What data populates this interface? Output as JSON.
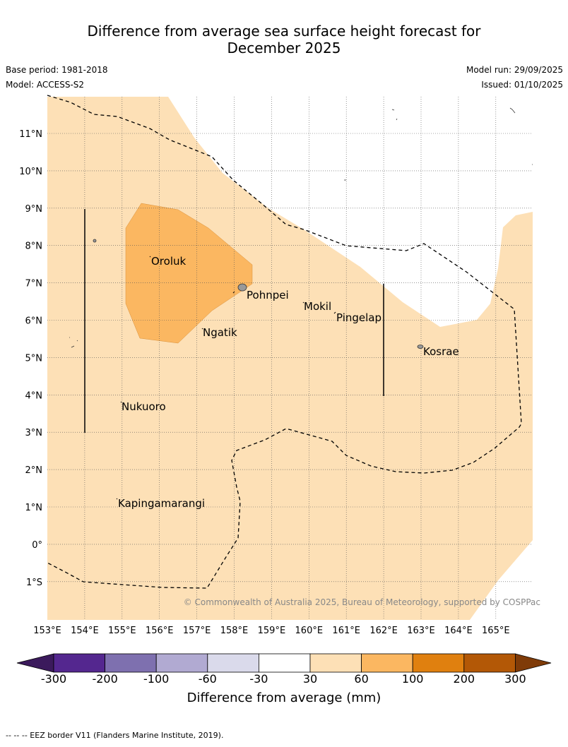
{
  "title_line1": "Difference from average sea surface height forecast for",
  "title_line2": "December 2025",
  "meta": {
    "base_period": "Base period: 1981-2018",
    "model": "Model: ACCESS-S2",
    "model_run": "Model run: 29/09/2025",
    "issued": "Issued: 01/10/2025"
  },
  "lon_labels": [
    "153°E",
    "154°E",
    "155°E",
    "156°E",
    "157°E",
    "158°E",
    "159°E",
    "160°E",
    "161°E",
    "162°E",
    "163°E",
    "164°E",
    "165°E"
  ],
  "lat_labels": [
    "11°N",
    "10°N",
    "9°N",
    "8°N",
    "7°N",
    "6°N",
    "5°N",
    "4°N",
    "3°N",
    "2°N",
    "1°N",
    "0°",
    "1°S"
  ],
  "places": [
    "Oroluk",
    "Pohnpei",
    "Mokil",
    "Pingelap",
    "Ngatik",
    "Kosrae",
    "Nukuoro",
    "Kapingamarangi"
  ],
  "copyright": "© Commonwealth of Australia 2025, Bureau of Meteorology, supported by COSPPac",
  "colorbar": {
    "ticks": [
      "-300",
      "-200",
      "-100",
      "-60",
      "-30",
      "30",
      "60",
      "100",
      "200",
      "300"
    ],
    "colors": [
      "#3b1a5c",
      "#54278f",
      "#7e70af",
      "#b1aad2",
      "#dadaeb",
      "#ffffff",
      "#fde0b6",
      "#fbb761",
      "#e0800f",
      "#b35806",
      "#7f3b08"
    ],
    "label": "Difference from average (mm)"
  },
  "footnote": "--  --  -- EEZ border V11 (Flanders Marine Institute, 2019)."
}
